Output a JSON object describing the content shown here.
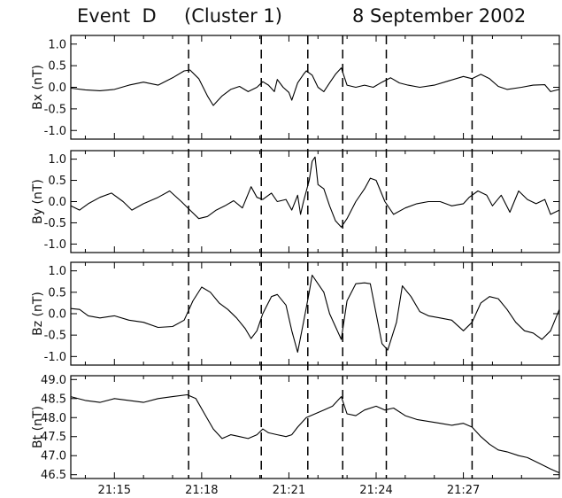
{
  "title": {
    "event": "Event  D",
    "cluster": "(Cluster 1)",
    "date": "8 September 2002"
  },
  "chart_data": {
    "type": "line",
    "x_axis": {
      "range_minutes": [
        13.5,
        30.3
      ],
      "ticks": [
        {
          "value": 15,
          "label": "21:15"
        },
        {
          "value": 18,
          "label": "21:18"
        },
        {
          "value": 21,
          "label": "21:21"
        },
        {
          "value": 24,
          "label": "21:24"
        },
        {
          "value": 27,
          "label": "21:27"
        }
      ],
      "unit_note": "minutes after 21:00"
    },
    "vertical_markers": [
      17.55,
      20.05,
      21.65,
      22.85,
      24.35,
      27.3
    ],
    "marker_style": "dashed",
    "panels": [
      {
        "ylabel": "Bx  (nT)",
        "ylim": [
          -1.2,
          1.2
        ],
        "yticks": [
          {
            "v": 1.0,
            "label": "1.0"
          },
          {
            "v": 0.5,
            "label": "0.5"
          },
          {
            "v": 0.0,
            "label": "0.0"
          },
          {
            "v": -0.5,
            "label": "-0.5"
          },
          {
            "v": -1.0,
            "label": "-1.0"
          }
        ],
        "series": [
          [
            13.5,
            -0.02
          ],
          [
            14.0,
            -0.06
          ],
          [
            14.5,
            -0.08
          ],
          [
            15.0,
            -0.05
          ],
          [
            15.5,
            0.05
          ],
          [
            16.0,
            0.12
          ],
          [
            16.5,
            0.05
          ],
          [
            17.0,
            0.22
          ],
          [
            17.4,
            0.38
          ],
          [
            17.6,
            0.4
          ],
          [
            17.9,
            0.2
          ],
          [
            18.2,
            -0.2
          ],
          [
            18.4,
            -0.42
          ],
          [
            18.7,
            -0.2
          ],
          [
            19.0,
            -0.05
          ],
          [
            19.3,
            0.02
          ],
          [
            19.6,
            -0.1
          ],
          [
            19.9,
            0.0
          ],
          [
            20.1,
            0.13
          ],
          [
            20.3,
            0.05
          ],
          [
            20.5,
            -0.1
          ],
          [
            20.6,
            0.18
          ],
          [
            20.8,
            0.0
          ],
          [
            21.0,
            -0.12
          ],
          [
            21.1,
            -0.3
          ],
          [
            21.3,
            0.1
          ],
          [
            21.5,
            0.3
          ],
          [
            21.6,
            0.38
          ],
          [
            21.8,
            0.28
          ],
          [
            22.0,
            0.0
          ],
          [
            22.2,
            -0.1
          ],
          [
            22.4,
            0.1
          ],
          [
            22.6,
            0.3
          ],
          [
            22.8,
            0.45
          ],
          [
            23.0,
            0.05
          ],
          [
            23.3,
            0.0
          ],
          [
            23.6,
            0.05
          ],
          [
            23.9,
            0.0
          ],
          [
            24.2,
            0.12
          ],
          [
            24.5,
            0.22
          ],
          [
            24.8,
            0.1
          ],
          [
            25.1,
            0.05
          ],
          [
            25.5,
            0.0
          ],
          [
            26.0,
            0.05
          ],
          [
            26.5,
            0.15
          ],
          [
            27.0,
            0.25
          ],
          [
            27.3,
            0.2
          ],
          [
            27.6,
            0.3
          ],
          [
            27.9,
            0.2
          ],
          [
            28.2,
            0.02
          ],
          [
            28.5,
            -0.05
          ],
          [
            29.0,
            0.0
          ],
          [
            29.4,
            0.05
          ],
          [
            29.8,
            0.06
          ],
          [
            30.0,
            -0.1
          ],
          [
            30.3,
            -0.05
          ]
        ]
      },
      {
        "ylabel": "By  (nT)",
        "ylim": [
          -1.2,
          1.2
        ],
        "yticks": [
          {
            "v": 1.0,
            "label": "1.0"
          },
          {
            "v": 0.5,
            "label": "0.5"
          },
          {
            "v": 0.0,
            "label": "0.0"
          },
          {
            "v": -0.5,
            "label": "-0.5"
          },
          {
            "v": -1.0,
            "label": "-1.0"
          }
        ],
        "series": [
          [
            13.5,
            -0.1
          ],
          [
            13.8,
            -0.2
          ],
          [
            14.1,
            -0.05
          ],
          [
            14.5,
            0.1
          ],
          [
            14.9,
            0.2
          ],
          [
            15.3,
            0.0
          ],
          [
            15.6,
            -0.2
          ],
          [
            16.0,
            -0.05
          ],
          [
            16.5,
            0.1
          ],
          [
            16.9,
            0.25
          ],
          [
            17.3,
            0.0
          ],
          [
            17.6,
            -0.2
          ],
          [
            17.9,
            -0.4
          ],
          [
            18.2,
            -0.35
          ],
          [
            18.5,
            -0.2
          ],
          [
            18.8,
            -0.1
          ],
          [
            19.1,
            0.02
          ],
          [
            19.4,
            -0.15
          ],
          [
            19.7,
            0.35
          ],
          [
            19.9,
            0.1
          ],
          [
            20.1,
            0.05
          ],
          [
            20.4,
            0.2
          ],
          [
            20.6,
            0.0
          ],
          [
            20.9,
            0.05
          ],
          [
            21.1,
            -0.2
          ],
          [
            21.3,
            0.15
          ],
          [
            21.4,
            -0.3
          ],
          [
            21.5,
            0.0
          ],
          [
            21.7,
            0.5
          ],
          [
            21.8,
            0.95
          ],
          [
            21.9,
            1.05
          ],
          [
            22.0,
            0.4
          ],
          [
            22.2,
            0.3
          ],
          [
            22.4,
            -0.1
          ],
          [
            22.6,
            -0.45
          ],
          [
            22.8,
            -0.6
          ],
          [
            23.0,
            -0.4
          ],
          [
            23.3,
            0.0
          ],
          [
            23.6,
            0.3
          ],
          [
            23.8,
            0.55
          ],
          [
            24.0,
            0.5
          ],
          [
            24.3,
            0.0
          ],
          [
            24.6,
            -0.3
          ],
          [
            25.0,
            -0.15
          ],
          [
            25.4,
            -0.05
          ],
          [
            25.8,
            0.0
          ],
          [
            26.2,
            0.0
          ],
          [
            26.6,
            -0.1
          ],
          [
            27.0,
            -0.05
          ],
          [
            27.2,
            0.1
          ],
          [
            27.5,
            0.25
          ],
          [
            27.8,
            0.15
          ],
          [
            28.0,
            -0.1
          ],
          [
            28.3,
            0.15
          ],
          [
            28.6,
            -0.25
          ],
          [
            28.9,
            0.25
          ],
          [
            29.2,
            0.05
          ],
          [
            29.5,
            -0.05
          ],
          [
            29.8,
            0.05
          ],
          [
            30.0,
            -0.3
          ],
          [
            30.3,
            -0.2
          ]
        ]
      },
      {
        "ylabel": "Bz  (nT)",
        "ylim": [
          -1.2,
          1.2
        ],
        "yticks": [
          {
            "v": 1.0,
            "label": "1.0"
          },
          {
            "v": 0.5,
            "label": "0.5"
          },
          {
            "v": 0.0,
            "label": "0.0"
          },
          {
            "v": -0.5,
            "label": "-0.5"
          },
          {
            "v": -1.0,
            "label": "-1.0"
          }
        ],
        "series": [
          [
            13.5,
            0.12
          ],
          [
            13.8,
            0.1
          ],
          [
            14.1,
            -0.05
          ],
          [
            14.5,
            -0.1
          ],
          [
            15.0,
            -0.05
          ],
          [
            15.5,
            -0.15
          ],
          [
            16.0,
            -0.2
          ],
          [
            16.5,
            -0.32
          ],
          [
            17.0,
            -0.3
          ],
          [
            17.4,
            -0.15
          ],
          [
            17.7,
            0.3
          ],
          [
            18.0,
            0.62
          ],
          [
            18.3,
            0.5
          ],
          [
            18.6,
            0.25
          ],
          [
            18.9,
            0.1
          ],
          [
            19.2,
            -0.1
          ],
          [
            19.5,
            -0.35
          ],
          [
            19.7,
            -0.58
          ],
          [
            19.9,
            -0.4
          ],
          [
            20.1,
            0.0
          ],
          [
            20.4,
            0.4
          ],
          [
            20.6,
            0.45
          ],
          [
            20.9,
            0.2
          ],
          [
            21.1,
            -0.4
          ],
          [
            21.3,
            -0.9
          ],
          [
            21.5,
            -0.2
          ],
          [
            21.7,
            0.5
          ],
          [
            21.8,
            0.9
          ],
          [
            22.0,
            0.7
          ],
          [
            22.2,
            0.5
          ],
          [
            22.4,
            0.0
          ],
          [
            22.6,
            -0.3
          ],
          [
            22.8,
            -0.6
          ],
          [
            23.0,
            0.3
          ],
          [
            23.3,
            0.7
          ],
          [
            23.6,
            0.72
          ],
          [
            23.8,
            0.7
          ],
          [
            24.0,
            0.0
          ],
          [
            24.2,
            -0.7
          ],
          [
            24.4,
            -0.85
          ],
          [
            24.7,
            -0.2
          ],
          [
            24.9,
            0.65
          ],
          [
            25.2,
            0.4
          ],
          [
            25.5,
            0.05
          ],
          [
            25.8,
            -0.05
          ],
          [
            26.2,
            -0.1
          ],
          [
            26.6,
            -0.15
          ],
          [
            27.0,
            -0.4
          ],
          [
            27.3,
            -0.2
          ],
          [
            27.6,
            0.25
          ],
          [
            27.9,
            0.4
          ],
          [
            28.2,
            0.35
          ],
          [
            28.5,
            0.1
          ],
          [
            28.8,
            -0.2
          ],
          [
            29.1,
            -0.4
          ],
          [
            29.4,
            -0.45
          ],
          [
            29.7,
            -0.6
          ],
          [
            30.0,
            -0.4
          ],
          [
            30.3,
            0.1
          ]
        ]
      },
      {
        "ylabel": "Bt  (nT)",
        "ylim": [
          46.4,
          49.1
        ],
        "yticks": [
          {
            "v": 49.0,
            "label": "49.0"
          },
          {
            "v": 48.5,
            "label": "48.5"
          },
          {
            "v": 48.0,
            "label": "48.0"
          },
          {
            "v": 47.5,
            "label": "47.5"
          },
          {
            "v": 47.0,
            "label": "47.0"
          },
          {
            "v": 46.5,
            "label": "46.5"
          }
        ],
        "series": [
          [
            13.5,
            48.55
          ],
          [
            14.0,
            48.45
          ],
          [
            14.5,
            48.4
          ],
          [
            15.0,
            48.5
          ],
          [
            15.5,
            48.45
          ],
          [
            16.0,
            48.4
          ],
          [
            16.5,
            48.5
          ],
          [
            17.0,
            48.55
          ],
          [
            17.5,
            48.6
          ],
          [
            17.8,
            48.5
          ],
          [
            18.1,
            48.1
          ],
          [
            18.4,
            47.7
          ],
          [
            18.7,
            47.45
          ],
          [
            19.0,
            47.55
          ],
          [
            19.3,
            47.5
          ],
          [
            19.6,
            47.45
          ],
          [
            19.9,
            47.55
          ],
          [
            20.1,
            47.7
          ],
          [
            20.3,
            47.6
          ],
          [
            20.6,
            47.55
          ],
          [
            20.9,
            47.5
          ],
          [
            21.1,
            47.55
          ],
          [
            21.3,
            47.75
          ],
          [
            21.6,
            48.0
          ],
          [
            21.9,
            48.1
          ],
          [
            22.2,
            48.2
          ],
          [
            22.5,
            48.3
          ],
          [
            22.8,
            48.55
          ],
          [
            23.0,
            48.1
          ],
          [
            23.3,
            48.05
          ],
          [
            23.6,
            48.2
          ],
          [
            24.0,
            48.3
          ],
          [
            24.3,
            48.2
          ],
          [
            24.6,
            48.25
          ],
          [
            25.0,
            48.05
          ],
          [
            25.4,
            47.95
          ],
          [
            25.8,
            47.9
          ],
          [
            26.2,
            47.85
          ],
          [
            26.6,
            47.8
          ],
          [
            27.0,
            47.85
          ],
          [
            27.3,
            47.75
          ],
          [
            27.6,
            47.5
          ],
          [
            27.9,
            47.3
          ],
          [
            28.2,
            47.15
          ],
          [
            28.5,
            47.1
          ],
          [
            28.9,
            47.0
          ],
          [
            29.2,
            46.95
          ],
          [
            29.6,
            46.8
          ],
          [
            30.0,
            46.65
          ],
          [
            30.3,
            46.55
          ]
        ]
      }
    ]
  }
}
